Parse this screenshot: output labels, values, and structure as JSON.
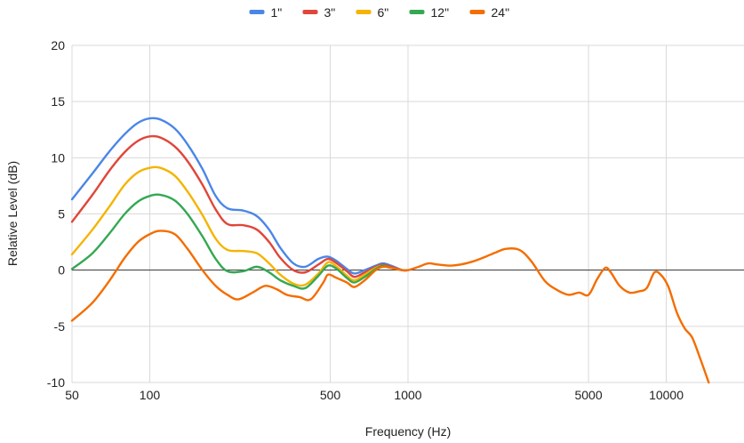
{
  "chart_data": {
    "type": "line",
    "xlabel": "Frequency (Hz)",
    "ylabel": "Relative Level (dB)",
    "x_scale": "log",
    "xlim": [
      50,
      20000
    ],
    "ylim": [
      -10,
      20
    ],
    "x_ticks": [
      50,
      100,
      500,
      1000,
      5000,
      10000
    ],
    "x_tick_labels": [
      "50",
      "100",
      "500",
      "1000",
      "5000",
      "10000"
    ],
    "y_ticks": [
      -10,
      -5,
      0,
      5,
      10,
      15,
      20
    ],
    "y_tick_labels": [
      "-10",
      "-5",
      "0",
      "5",
      "10",
      "15",
      "20"
    ],
    "grid": "vertical",
    "legend_position": "top",
    "series": [
      {
        "name": "1\"",
        "color": "#4a86e8",
        "points": [
          [
            50,
            6.3
          ],
          [
            60,
            8.6
          ],
          [
            70,
            10.6
          ],
          [
            80,
            12.1
          ],
          [
            90,
            13.1
          ],
          [
            100,
            13.5
          ],
          [
            110,
            13.4
          ],
          [
            125,
            12.6
          ],
          [
            140,
            11.2
          ],
          [
            160,
            9.0
          ],
          [
            180,
            6.6
          ],
          [
            200,
            5.5
          ],
          [
            230,
            5.3
          ],
          [
            260,
            4.8
          ],
          [
            290,
            3.6
          ],
          [
            320,
            2.0
          ],
          [
            360,
            0.6
          ],
          [
            400,
            0.3
          ],
          [
            450,
            1.0
          ],
          [
            490,
            1.2
          ],
          [
            530,
            0.8
          ],
          [
            580,
            0.1
          ],
          [
            620,
            -0.3
          ],
          [
            680,
            0.0
          ],
          [
            750,
            0.4
          ],
          [
            800,
            0.6
          ],
          [
            860,
            0.4
          ],
          [
            950,
            0.0
          ],
          [
            1000,
            0.0
          ]
        ]
      },
      {
        "name": "3\"",
        "color": "#e0463a",
        "points": [
          [
            50,
            4.3
          ],
          [
            60,
            6.7
          ],
          [
            70,
            8.9
          ],
          [
            80,
            10.5
          ],
          [
            90,
            11.5
          ],
          [
            100,
            11.9
          ],
          [
            110,
            11.8
          ],
          [
            125,
            11.0
          ],
          [
            140,
            9.7
          ],
          [
            160,
            7.6
          ],
          [
            180,
            5.4
          ],
          [
            200,
            4.1
          ],
          [
            230,
            4.0
          ],
          [
            260,
            3.6
          ],
          [
            290,
            2.5
          ],
          [
            320,
            1.1
          ],
          [
            360,
            0.0
          ],
          [
            400,
            -0.2
          ],
          [
            450,
            0.5
          ],
          [
            490,
            1.0
          ],
          [
            530,
            0.6
          ],
          [
            580,
            -0.1
          ],
          [
            620,
            -0.6
          ],
          [
            680,
            -0.2
          ],
          [
            750,
            0.3
          ],
          [
            800,
            0.5
          ],
          [
            860,
            0.3
          ],
          [
            950,
            0.0
          ],
          [
            1000,
            0.0
          ]
        ]
      },
      {
        "name": "6\"",
        "color": "#f4b400",
        "points": [
          [
            50,
            1.4
          ],
          [
            60,
            3.6
          ],
          [
            70,
            5.7
          ],
          [
            80,
            7.6
          ],
          [
            90,
            8.7
          ],
          [
            100,
            9.1
          ],
          [
            110,
            9.1
          ],
          [
            125,
            8.4
          ],
          [
            140,
            7.0
          ],
          [
            160,
            4.9
          ],
          [
            180,
            2.8
          ],
          [
            200,
            1.8
          ],
          [
            230,
            1.7
          ],
          [
            260,
            1.5
          ],
          [
            290,
            0.6
          ],
          [
            320,
            -0.4
          ],
          [
            360,
            -1.2
          ],
          [
            400,
            -1.3
          ],
          [
            450,
            -0.3
          ],
          [
            490,
            0.7
          ],
          [
            530,
            0.3
          ],
          [
            580,
            -0.5
          ],
          [
            620,
            -0.9
          ],
          [
            680,
            -0.4
          ],
          [
            750,
            0.2
          ],
          [
            800,
            0.4
          ],
          [
            860,
            0.2
          ],
          [
            950,
            0.0
          ],
          [
            1000,
            0.0
          ]
        ]
      },
      {
        "name": "12\"",
        "color": "#34a853",
        "points": [
          [
            50,
            0.1
          ],
          [
            60,
            1.5
          ],
          [
            70,
            3.3
          ],
          [
            80,
            5.0
          ],
          [
            90,
            6.1
          ],
          [
            100,
            6.6
          ],
          [
            110,
            6.7
          ],
          [
            125,
            6.2
          ],
          [
            140,
            5.0
          ],
          [
            160,
            3.0
          ],
          [
            180,
            1.0
          ],
          [
            200,
            -0.1
          ],
          [
            230,
            -0.1
          ],
          [
            260,
            0.3
          ],
          [
            290,
            -0.2
          ],
          [
            320,
            -0.9
          ],
          [
            360,
            -1.4
          ],
          [
            400,
            -1.6
          ],
          [
            450,
            -0.5
          ],
          [
            490,
            0.4
          ],
          [
            530,
            0.1
          ],
          [
            580,
            -0.7
          ],
          [
            620,
            -1.1
          ],
          [
            680,
            -0.6
          ],
          [
            750,
            0.1
          ],
          [
            800,
            0.4
          ],
          [
            860,
            0.2
          ],
          [
            950,
            0.0
          ],
          [
            1000,
            0.0
          ]
        ]
      },
      {
        "name": "24\"",
        "color": "#f46d00",
        "points": [
          [
            50,
            -4.5
          ],
          [
            60,
            -2.9
          ],
          [
            70,
            -0.9
          ],
          [
            80,
            1.1
          ],
          [
            90,
            2.5
          ],
          [
            100,
            3.2
          ],
          [
            110,
            3.5
          ],
          [
            125,
            3.2
          ],
          [
            140,
            1.9
          ],
          [
            160,
            0.0
          ],
          [
            180,
            -1.4
          ],
          [
            200,
            -2.2
          ],
          [
            220,
            -2.6
          ],
          [
            250,
            -2.0
          ],
          [
            280,
            -1.4
          ],
          [
            310,
            -1.7
          ],
          [
            340,
            -2.2
          ],
          [
            380,
            -2.4
          ],
          [
            420,
            -2.6
          ],
          [
            470,
            -1.1
          ],
          [
            490,
            -0.4
          ],
          [
            530,
            -0.7
          ],
          [
            580,
            -1.1
          ],
          [
            620,
            -1.5
          ],
          [
            680,
            -0.9
          ],
          [
            750,
            0.0
          ],
          [
            800,
            0.3
          ],
          [
            860,
            0.2
          ],
          [
            950,
            0.0
          ],
          [
            1000,
            0.0
          ],
          [
            1100,
            0.3
          ],
          [
            1200,
            0.6
          ],
          [
            1300,
            0.5
          ],
          [
            1450,
            0.4
          ],
          [
            1600,
            0.5
          ],
          [
            1800,
            0.8
          ],
          [
            2000,
            1.2
          ],
          [
            2200,
            1.6
          ],
          [
            2400,
            1.9
          ],
          [
            2700,
            1.8
          ],
          [
            3000,
            0.8
          ],
          [
            3400,
            -1.0
          ],
          [
            3800,
            -1.8
          ],
          [
            4200,
            -2.2
          ],
          [
            4600,
            -2.0
          ],
          [
            5000,
            -2.2
          ],
          [
            5400,
            -0.8
          ],
          [
            5800,
            0.2
          ],
          [
            6100,
            -0.2
          ],
          [
            6600,
            -1.4
          ],
          [
            7200,
            -2.0
          ],
          [
            7800,
            -1.9
          ],
          [
            8400,
            -1.6
          ],
          [
            9000,
            -0.2
          ],
          [
            9600,
            -0.5
          ],
          [
            10200,
            -1.5
          ],
          [
            11000,
            -3.8
          ],
          [
            11800,
            -5.2
          ],
          [
            12600,
            -6.0
          ],
          [
            13600,
            -8.0
          ],
          [
            14600,
            -10.0
          ]
        ]
      }
    ]
  }
}
